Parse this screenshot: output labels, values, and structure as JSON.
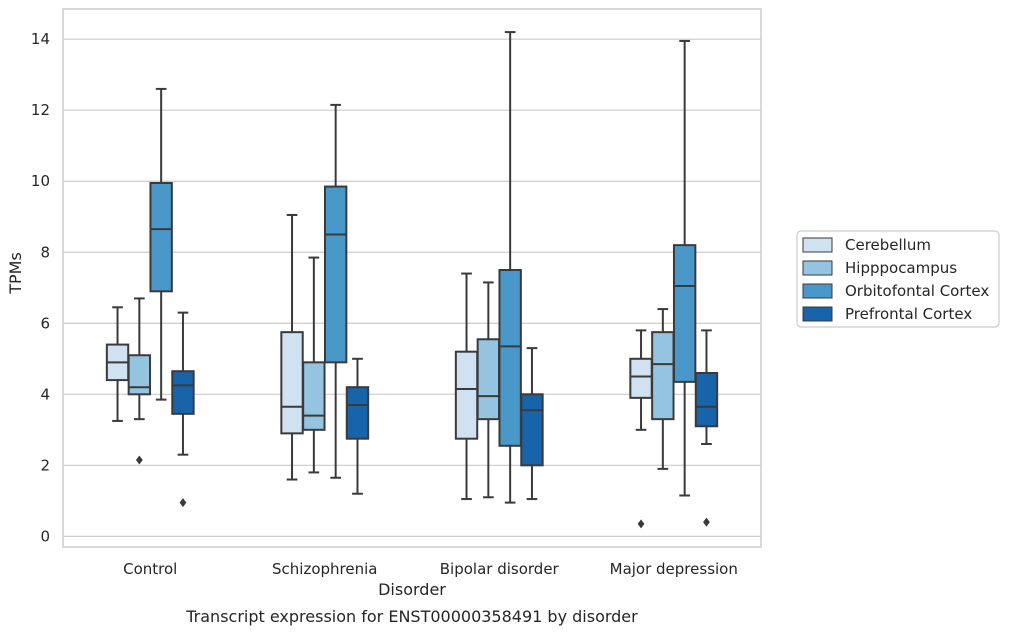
{
  "caption": "Transcript expression for ENST00000358491 by disorder",
  "chart_data": {
    "type": "box",
    "xlabel": "Disorder",
    "ylabel": "TPMs",
    "ylim": [
      -0.3,
      14.85
    ],
    "yticks": [
      0,
      2,
      4,
      6,
      8,
      10,
      12,
      14
    ],
    "grid": "horizontal",
    "legend_position": "right",
    "categories": [
      "Control",
      "Schizophrenia",
      "Bipolar disorder",
      "Major depression"
    ],
    "series": [
      {
        "name": "Cerebellum",
        "color": "#d0e1f2",
        "boxes": [
          {
            "whisker_low": 3.25,
            "q1": 4.4,
            "median": 4.9,
            "q3": 5.4,
            "whisker_high": 6.45,
            "outliers": []
          },
          {
            "whisker_low": 1.6,
            "q1": 2.9,
            "median": 3.65,
            "q3": 5.75,
            "whisker_high": 9.05,
            "outliers": []
          },
          {
            "whisker_low": 1.05,
            "q1": 2.75,
            "median": 4.15,
            "q3": 5.2,
            "whisker_high": 7.4,
            "outliers": []
          },
          {
            "whisker_low": 3.0,
            "q1": 3.9,
            "median": 4.5,
            "q3": 5.0,
            "whisker_high": 5.8,
            "outliers": [
              0.35
            ]
          }
        ]
      },
      {
        "name": "Hipppocampus",
        "color": "#94c4df",
        "boxes": [
          {
            "whisker_low": 3.3,
            "q1": 4.0,
            "median": 4.2,
            "q3": 5.1,
            "whisker_high": 6.7,
            "outliers": [
              2.15
            ]
          },
          {
            "whisker_low": 1.8,
            "q1": 3.0,
            "median": 3.4,
            "q3": 4.9,
            "whisker_high": 7.85,
            "outliers": []
          },
          {
            "whisker_low": 1.1,
            "q1": 3.3,
            "median": 3.95,
            "q3": 5.55,
            "whisker_high": 7.15,
            "outliers": []
          },
          {
            "whisker_low": 1.9,
            "q1": 3.3,
            "median": 4.85,
            "q3": 5.75,
            "whisker_high": 6.4,
            "outliers": []
          }
        ]
      },
      {
        "name": "Orbitofontal Cortex",
        "color": "#4a98c9",
        "boxes": [
          {
            "whisker_low": 3.85,
            "q1": 6.9,
            "median": 8.65,
            "q3": 9.95,
            "whisker_high": 12.6,
            "outliers": []
          },
          {
            "whisker_low": 1.65,
            "q1": 4.9,
            "median": 8.5,
            "q3": 9.85,
            "whisker_high": 12.15,
            "outliers": []
          },
          {
            "whisker_low": 0.95,
            "q1": 2.55,
            "median": 5.35,
            "q3": 7.5,
            "whisker_high": 14.2,
            "outliers": []
          },
          {
            "whisker_low": 1.15,
            "q1": 4.35,
            "median": 7.05,
            "q3": 8.2,
            "whisker_high": 13.95,
            "outliers": []
          }
        ]
      },
      {
        "name": "Prefrontal Cortex",
        "color": "#1764ab",
        "boxes": [
          {
            "whisker_low": 2.3,
            "q1": 3.45,
            "median": 4.25,
            "q3": 4.65,
            "whisker_high": 6.3,
            "outliers": [
              0.95
            ]
          },
          {
            "whisker_low": 1.2,
            "q1": 2.75,
            "median": 3.7,
            "q3": 4.2,
            "whisker_high": 5.0,
            "outliers": []
          },
          {
            "whisker_low": 1.05,
            "q1": 2.0,
            "median": 3.55,
            "q3": 4.0,
            "whisker_high": 5.3,
            "outliers": []
          },
          {
            "whisker_low": 2.6,
            "q1": 3.1,
            "median": 3.65,
            "q3": 4.6,
            "whisker_high": 5.8,
            "outliers": [
              0.4
            ]
          }
        ]
      }
    ]
  }
}
